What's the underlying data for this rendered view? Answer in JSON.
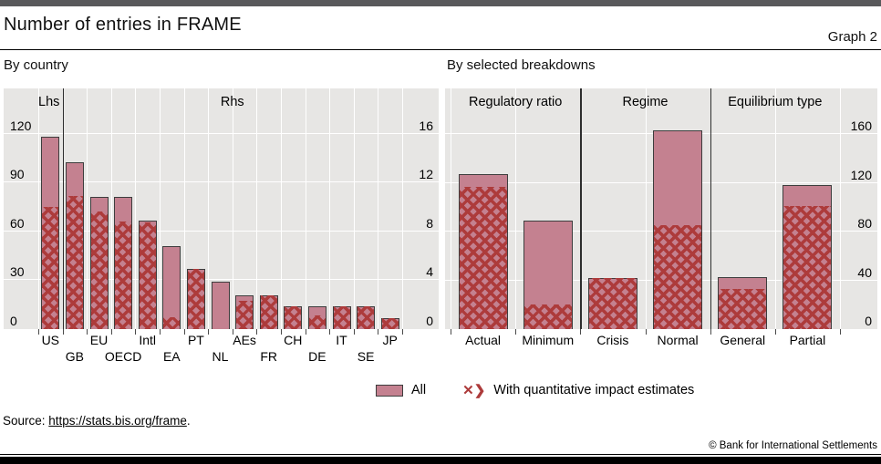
{
  "header": {
    "title": "Number of entries in FRAME",
    "graph_label": "Graph 2"
  },
  "legend": {
    "all_label": "All",
    "hatch_icon": "✕❯",
    "hatch_label": "With quantitative impact estimates"
  },
  "footer": {
    "source_prefix": "Source: ",
    "source_link": "https://stats.bis.org/frame",
    "source_suffix": ".",
    "copyright": "© Bank for International Settlements"
  },
  "colors": {
    "bar_fill": "#c48190",
    "hatch_red": "#ad3b3b",
    "plot_background": "#e7e6e4",
    "gridline": "#ffffff",
    "bar_border": "#3d3d3d"
  },
  "chart_data": [
    {
      "type": "bar",
      "title": "By country",
      "axis_notes": {
        "left": "Lhs",
        "right": "Rhs"
      },
      "left_axis": {
        "ticks": [
          0,
          30,
          60,
          90,
          120
        ],
        "max": 147.8
      },
      "right_axis": {
        "ticks": [
          0,
          4,
          8,
          12,
          16
        ],
        "max": 19.71
      },
      "categories": [
        "US",
        "GB",
        "EU",
        "OECD",
        "Intl",
        "EA",
        "PT",
        "NL",
        "AEs",
        "FR",
        "CH",
        "DE",
        "IT",
        "SE",
        "JP"
      ],
      "scales": [
        "lhs",
        "rhs",
        "rhs",
        "rhs",
        "rhs",
        "rhs",
        "rhs",
        "rhs",
        "rhs",
        "rhs",
        "rhs",
        "rhs",
        "rhs",
        "rhs",
        "rhs"
      ],
      "separator_after_category": "US",
      "grid": true,
      "series": [
        {
          "name": "All",
          "values": [
            118,
            13.7,
            10.8,
            10.8,
            8.9,
            6.8,
            4.9,
            3.9,
            2.8,
            2.8,
            1.9,
            1.9,
            1.9,
            1.9,
            0.9
          ]
        },
        {
          "name": "With quantitative impact estimates",
          "values": [
            75,
            10.9,
            9.6,
            8.8,
            8.7,
            1.0,
            4.9,
            0,
            2.3,
            2.8,
            1.9,
            1.1,
            1.9,
            1.9,
            0.9
          ]
        }
      ]
    },
    {
      "type": "bar",
      "title": "By selected breakdowns",
      "right_axis": {
        "ticks": [
          0,
          40,
          80,
          120,
          160
        ],
        "max": 197.4
      },
      "groups": [
        {
          "label": "Regulatory ratio",
          "categories": [
            "Actual",
            "Minimum"
          ]
        },
        {
          "label": "Regime",
          "categories": [
            "Crisis",
            "Normal"
          ]
        },
        {
          "label": "Equilibrium type",
          "categories": [
            "General",
            "Partial"
          ]
        }
      ],
      "categories": [
        "Actual",
        "Minimum",
        "Crisis",
        "Normal",
        "General",
        "Partial"
      ],
      "grid": true,
      "series": [
        {
          "name": "All",
          "values": [
            127,
            89,
            42,
            163,
            43,
            118
          ]
        },
        {
          "name": "With quantitative impact estimates",
          "values": [
            117,
            20,
            42,
            85,
            33,
            101
          ]
        }
      ]
    }
  ]
}
